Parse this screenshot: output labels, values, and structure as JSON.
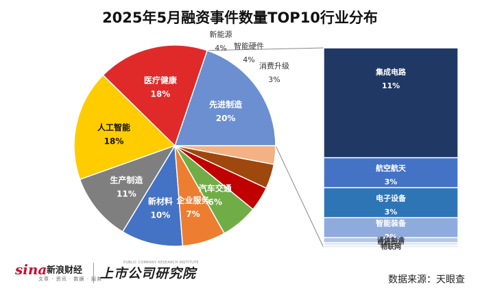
{
  "title": "2025年5月融资事件数量TOP10行业分布",
  "source": "数据来源：天眼查",
  "logos": {
    "sina": "sina",
    "sina_name": "新浪财经",
    "sina_sub": "文章 · 资讯 · 数据 · 服务",
    "brand": "上市公司研究院",
    "brand_en": "PUBLIC COMPANY RESEARCH INSTITUTE"
  },
  "colors": {
    "先进制造": "#6b8fd0",
    "医疗健康": "#e02a2a",
    "人工智能": "#ffcc00",
    "生产制造": "#7f7f7f",
    "新材料": "#4472c4",
    "企业服务": "#ed7d31",
    "汽车交通": "#70ad47",
    "新能源": "#c00000",
    "智能硬件": "#9e480e",
    "消费升级": "#f4b183",
    "集成电路": "#203864",
    "航空航天": "#4472c4",
    "电子设备": "#2e75b6",
    "智能装备": "#8faadc",
    "通信制造": "#b4c7e7",
    "导航定位": "#d6e1f3",
    "物联网": "#e9eef8"
  },
  "chart_data": [
    {
      "type": "pie",
      "title": "2025年5月融资事件数量TOP10行业分布",
      "start": "3 o'clock, counter-clockwise",
      "slices": [
        {
          "label": "先进制造",
          "value": 20,
          "value_label": "20%"
        },
        {
          "label": "医疗健康",
          "value": 18,
          "value_label": "18%"
        },
        {
          "label": "人工智能",
          "value": 18,
          "value_label": "18%"
        },
        {
          "label": "生产制造",
          "value": 11,
          "value_label": "11%"
        },
        {
          "label": "新材料",
          "value": 10,
          "value_label": "10%"
        },
        {
          "label": "企业服务",
          "value": 7,
          "value_label": "7%"
        },
        {
          "label": "汽车交通",
          "value": 6,
          "value_label": "6%"
        },
        {
          "label": "新能源",
          "value": 4,
          "value_label": "4%"
        },
        {
          "label": "智能硬件",
          "value": 4,
          "value_label": "4%"
        },
        {
          "label": "消费升级",
          "value": 3,
          "value_label": "3%"
        }
      ]
    },
    {
      "type": "bar",
      "orientation": "stacked-vertical",
      "parent": "先进制造",
      "segments": [
        {
          "label": "集成电路",
          "value": 11,
          "value_label": "11%"
        },
        {
          "label": "航空航天",
          "value": 3,
          "value_label": "3%"
        },
        {
          "label": "电子设备",
          "value": 3,
          "value_label": "3%"
        },
        {
          "label": "智能装备",
          "value": 2,
          "value_label": "2%"
        },
        {
          "label": "通信制造",
          "value": 0.5,
          "value_label": ""
        },
        {
          "label": "导航定位",
          "value": 0.25,
          "value_label": ""
        },
        {
          "label": "物联网",
          "value": 0.25,
          "value_label": ""
        }
      ]
    }
  ]
}
